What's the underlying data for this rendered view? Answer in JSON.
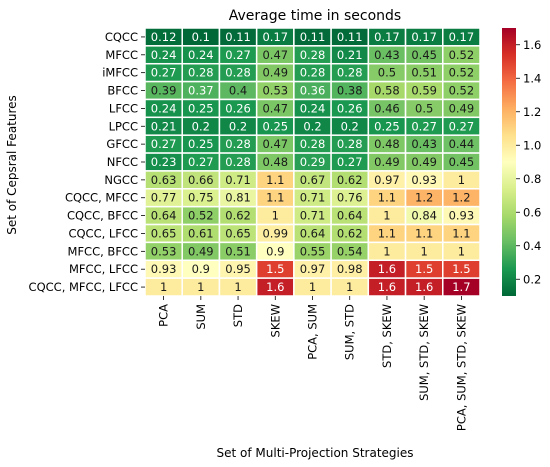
{
  "chart_data": {
    "type": "heatmap",
    "title": "Average time in seconds",
    "xlabel": "Set of Multi-Projection Strategies",
    "ylabel": "Set of Cepsral Features",
    "x_categories": [
      "PCA",
      "SUM",
      "STD",
      "SKEW",
      "PCA, SUM",
      "SUM, STD",
      "STD, SKEW",
      "SUM, STD, SKEW",
      "PCA, SUM, STD, SKEW"
    ],
    "y_categories": [
      "CQCC",
      "MFCC",
      "iMFCC",
      "BFCC",
      "LFCC",
      "LPCC",
      "GFCC",
      "NFCC",
      "NGCC",
      "CQCC, MFCC",
      "CQCC, BFCC",
      "CQCC, LFCC",
      "MFCC, BFCC",
      "MFCC, LFCC",
      "CQCC, MFCC, LFCC"
    ],
    "values": [
      [
        0.12,
        0.1,
        0.11,
        0.17,
        0.11,
        0.11,
        0.17,
        0.17,
        0.17
      ],
      [
        0.24,
        0.24,
        0.27,
        0.47,
        0.28,
        0.21,
        0.43,
        0.45,
        0.52
      ],
      [
        0.27,
        0.28,
        0.28,
        0.49,
        0.28,
        0.28,
        0.5,
        0.51,
        0.52
      ],
      [
        0.39,
        0.37,
        0.4,
        0.53,
        0.36,
        0.38,
        0.58,
        0.59,
        0.52
      ],
      [
        0.24,
        0.25,
        0.26,
        0.47,
        0.24,
        0.26,
        0.46,
        0.5,
        0.49
      ],
      [
        0.21,
        0.2,
        0.2,
        0.25,
        0.2,
        0.2,
        0.25,
        0.27,
        0.27
      ],
      [
        0.27,
        0.25,
        0.28,
        0.47,
        0.28,
        0.28,
        0.48,
        0.43,
        0.44
      ],
      [
        0.23,
        0.27,
        0.28,
        0.48,
        0.29,
        0.27,
        0.49,
        0.49,
        0.45
      ],
      [
        0.63,
        0.66,
        0.71,
        1.1,
        0.67,
        0.62,
        0.97,
        0.93,
        1
      ],
      [
        0.77,
        0.75,
        0.81,
        1.1,
        0.71,
        0.76,
        1.1,
        1.2,
        1.2
      ],
      [
        0.64,
        0.52,
        0.62,
        1,
        0.71,
        0.64,
        1,
        0.84,
        0.93
      ],
      [
        0.65,
        0.61,
        0.65,
        0.99,
        0.64,
        0.62,
        1.1,
        1.1,
        1.1
      ],
      [
        0.53,
        0.49,
        0.51,
        0.9,
        0.55,
        0.54,
        1,
        1,
        1
      ],
      [
        0.93,
        0.9,
        0.95,
        1.5,
        0.97,
        0.98,
        1.6,
        1.5,
        1.5
      ],
      [
        1,
        1,
        1,
        1.6,
        1,
        1,
        1.6,
        1.6,
        1.7
      ]
    ],
    "labels": [
      [
        "0.12",
        "0.1",
        "0.11",
        "0.17",
        "0.11",
        "0.11",
        "0.17",
        "0.17",
        "0.17"
      ],
      [
        "0.24",
        "0.24",
        "0.27",
        "0.47",
        "0.28",
        "0.21",
        "0.43",
        "0.45",
        "0.52"
      ],
      [
        "0.27",
        "0.28",
        "0.28",
        "0.49",
        "0.28",
        "0.28",
        "0.5",
        "0.51",
        "0.52"
      ],
      [
        "0.39",
        "0.37",
        "0.4",
        "0.53",
        "0.36",
        "0.38",
        "0.58",
        "0.59",
        "0.52"
      ],
      [
        "0.24",
        "0.25",
        "0.26",
        "0.47",
        "0.24",
        "0.26",
        "0.46",
        "0.5",
        "0.49"
      ],
      [
        "0.21",
        "0.2",
        "0.2",
        "0.25",
        "0.2",
        "0.2",
        "0.25",
        "0.27",
        "0.27"
      ],
      [
        "0.27",
        "0.25",
        "0.28",
        "0.47",
        "0.28",
        "0.28",
        "0.48",
        "0.43",
        "0.44"
      ],
      [
        "0.23",
        "0.27",
        "0.28",
        "0.48",
        "0.29",
        "0.27",
        "0.49",
        "0.49",
        "0.45"
      ],
      [
        "0.63",
        "0.66",
        "0.71",
        "1.1",
        "0.67",
        "0.62",
        "0.97",
        "0.93",
        "1"
      ],
      [
        "0.77",
        "0.75",
        "0.81",
        "1.1",
        "0.71",
        "0.76",
        "1.1",
        "1.2",
        "1.2"
      ],
      [
        "0.64",
        "0.52",
        "0.62",
        "1",
        "0.71",
        "0.64",
        "1",
        "0.84",
        "0.93"
      ],
      [
        "0.65",
        "0.61",
        "0.65",
        "0.99",
        "0.64",
        "0.62",
        "1.1",
        "1.1",
        "1.1"
      ],
      [
        "0.53",
        "0.49",
        "0.51",
        "0.9",
        "0.55",
        "0.54",
        "1",
        "1",
        "1"
      ],
      [
        "0.93",
        "0.9",
        "0.95",
        "1.5",
        "0.97",
        "0.98",
        "1.6",
        "1.5",
        "1.5"
      ],
      [
        "1",
        "1",
        "1",
        "1.6",
        "1",
        "1",
        "1.6",
        "1.6",
        "1.7"
      ]
    ],
    "colormap": "RdYlGn_r",
    "color_range": [
      0.1,
      1.7
    ],
    "colorbar_ticks": [
      0.2,
      0.4,
      0.6,
      0.8,
      1.0,
      1.2,
      1.4,
      1.6
    ],
    "colorbar_tick_labels": [
      "0.2",
      "0.4",
      "0.6",
      "0.8",
      "1.0",
      "1.2",
      "1.4",
      "1.6"
    ],
    "colors": {
      "cell_border": "#ffffff",
      "text_dark": "#1a1a1a",
      "text_light": "#ffffff"
    }
  }
}
